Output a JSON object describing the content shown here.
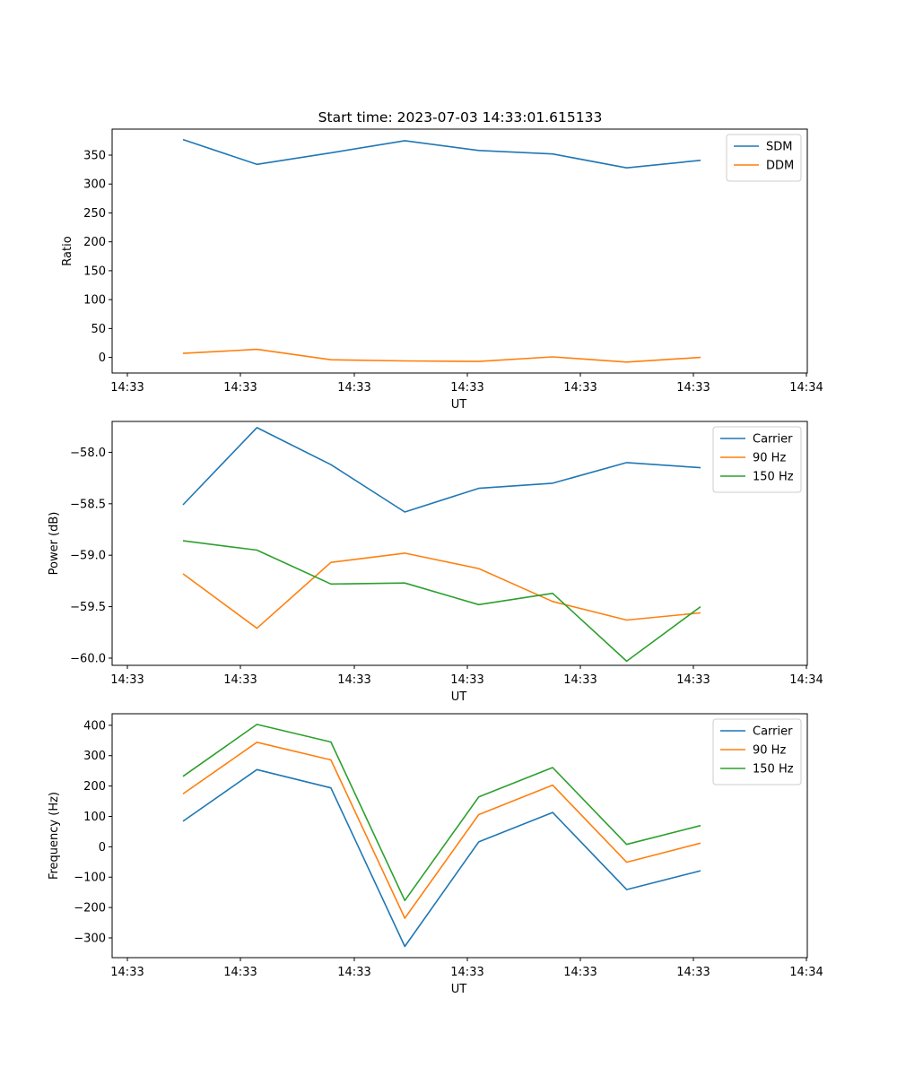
{
  "figure": {
    "title": "Start time: 2023-07-03 14:33:01.615133"
  },
  "colors": {
    "blue": "#1f77b4",
    "orange": "#ff7f0e",
    "green": "#2ca02c",
    "axes": "#000000",
    "legend_border": "#cccccc"
  },
  "chart_data": [
    {
      "type": "line",
      "title": "Start time: 2023-07-03 14:33:01.615133",
      "xlabel": "UT",
      "ylabel": "Ratio",
      "x_tick_labels": [
        "14:33",
        "14:33",
        "14:33",
        "14:33",
        "14:33",
        "14:33",
        "14:34"
      ],
      "x": [
        1,
        2,
        3,
        4,
        5,
        6,
        7,
        8
      ],
      "xlim": [
        0.2,
        9.15
      ],
      "ylim": [
        -27,
        395
      ],
      "yticks": [
        0,
        50,
        100,
        150,
        200,
        250,
        300,
        350
      ],
      "ytick_labels": [
        "0",
        "50",
        "100",
        "150",
        "200",
        "250",
        "300",
        "350"
      ],
      "legend_position": "top-right",
      "series": [
        {
          "name": "SDM",
          "color": "#1f77b4",
          "values": [
            377,
            334,
            354,
            375,
            358,
            352,
            328,
            341
          ]
        },
        {
          "name": "DDM",
          "color": "#ff7f0e",
          "values": [
            7,
            14,
            -4,
            -6,
            -7,
            1,
            -8,
            0
          ]
        }
      ]
    },
    {
      "type": "line",
      "xlabel": "UT",
      "ylabel": "Power (dB)",
      "x_tick_labels": [
        "14:33",
        "14:33",
        "14:33",
        "14:33",
        "14:33",
        "14:33",
        "14:34"
      ],
      "x": [
        1,
        2,
        3,
        4,
        5,
        6,
        7,
        8
      ],
      "xlim": [
        0.2,
        9.15
      ],
      "ylim": [
        -60.07,
        -57.7
      ],
      "yticks": [
        -58.0,
        -58.5,
        -59.0,
        -59.5,
        -60.0
      ],
      "ytick_labels": [
        "−58.0",
        "−58.5",
        "−59.0",
        "−59.5",
        "−60.0"
      ],
      "legend_position": "top-right",
      "series": [
        {
          "name": "Carrier",
          "color": "#1f77b4",
          "values": [
            -58.51,
            -57.76,
            -58.12,
            -58.58,
            -58.35,
            -58.3,
            -58.1,
            -58.15
          ]
        },
        {
          "name": "90 Hz",
          "color": "#ff7f0e",
          "values": [
            -59.18,
            -59.71,
            -59.07,
            -58.98,
            -59.13,
            -59.45,
            -59.63,
            -59.56
          ]
        },
        {
          "name": "150 Hz",
          "color": "#2ca02c",
          "values": [
            -58.86,
            -58.95,
            -59.28,
            -59.27,
            -59.48,
            -59.37,
            -60.03,
            -59.5
          ]
        }
      ]
    },
    {
      "type": "line",
      "xlabel": "UT",
      "ylabel": "Frequency (Hz)",
      "x_tick_labels": [
        "14:33",
        "14:33",
        "14:33",
        "14:33",
        "14:33",
        "14:33",
        "14:34"
      ],
      "x": [
        1,
        2,
        3,
        4,
        5,
        6,
        7,
        8
      ],
      "xlim": [
        0.2,
        9.15
      ],
      "ylim": [
        -365,
        438
      ],
      "yticks": [
        400,
        300,
        200,
        100,
        0,
        -100,
        -200,
        -300
      ],
      "ytick_labels": [
        "400",
        "300",
        "200",
        "100",
        "0",
        "−100",
        "−200",
        "−300"
      ],
      "legend_position": "top-right",
      "series": [
        {
          "name": "Carrier",
          "color": "#1f77b4",
          "values": [
            84,
            254,
            194,
            -328,
            16,
            113,
            -141,
            -79
          ]
        },
        {
          "name": "90 Hz",
          "color": "#ff7f0e",
          "values": [
            174,
            344,
            286,
            -235,
            106,
            203,
            -51,
            12
          ]
        },
        {
          "name": "150 Hz",
          "color": "#2ca02c",
          "values": [
            232,
            403,
            345,
            -177,
            164,
            261,
            8,
            70
          ]
        }
      ]
    }
  ]
}
